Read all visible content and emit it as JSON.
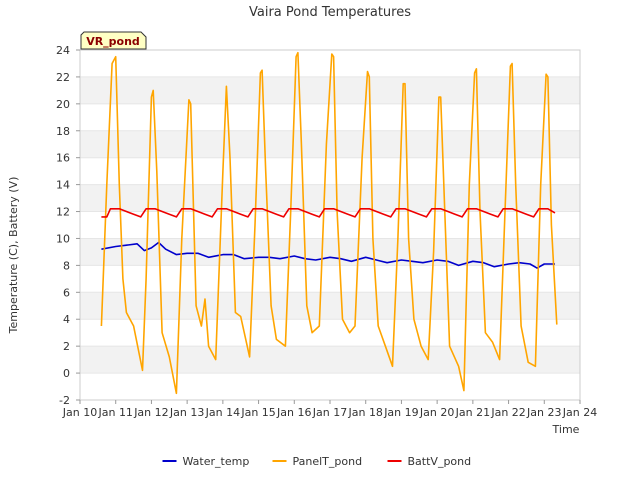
{
  "chart_data": {
    "type": "line",
    "title": "Vaira Pond Temperatures",
    "xlabel": "Time",
    "ylabel": "Temperature (C), Battery (V)",
    "badge": "VR_pond",
    "xlim": [
      10,
      24
    ],
    "ylim": [
      -2,
      24
    ],
    "x_ticks": [
      {
        "value": 10,
        "label": "Jan 10"
      },
      {
        "value": 11,
        "label": "Jan 11"
      },
      {
        "value": 12,
        "label": "Jan 12"
      },
      {
        "value": 13,
        "label": "Jan 13"
      },
      {
        "value": 14,
        "label": "Jan 14"
      },
      {
        "value": 15,
        "label": "Jan 15"
      },
      {
        "value": 16,
        "label": "Jan 16"
      },
      {
        "value": 17,
        "label": "Jan 17"
      },
      {
        "value": 18,
        "label": "Jan 18"
      },
      {
        "value": 19,
        "label": "Jan 19"
      },
      {
        "value": 20,
        "label": "Jan 20"
      },
      {
        "value": 21,
        "label": "Jan 21"
      },
      {
        "value": 22,
        "label": "Jan 22"
      },
      {
        "value": 23,
        "label": "Jan 23"
      },
      {
        "value": 24,
        "label": "Jan 24"
      }
    ],
    "y_ticks": [
      -2,
      0,
      2,
      4,
      6,
      8,
      10,
      12,
      14,
      16,
      18,
      20,
      22,
      24
    ],
    "grid": "horizontal bands",
    "legend_position": "bottom",
    "series": [
      {
        "name": "Water_temp",
        "color": "#0000cc",
        "x": [
          10.6,
          11.0,
          11.3,
          11.6,
          11.8,
          12.0,
          12.2,
          12.4,
          12.7,
          13.0,
          13.3,
          13.6,
          14.0,
          14.3,
          14.6,
          15.0,
          15.3,
          15.6,
          16.0,
          16.3,
          16.6,
          17.0,
          17.3,
          17.6,
          18.0,
          18.3,
          18.6,
          19.0,
          19.3,
          19.6,
          20.0,
          20.3,
          20.6,
          21.0,
          21.3,
          21.6,
          22.0,
          22.3,
          22.6,
          22.8,
          23.0,
          23.3
        ],
        "values": [
          9.2,
          9.4,
          9.5,
          9.6,
          9.1,
          9.3,
          9.7,
          9.2,
          8.8,
          8.9,
          8.9,
          8.6,
          8.8,
          8.8,
          8.5,
          8.6,
          8.6,
          8.5,
          8.7,
          8.5,
          8.4,
          8.6,
          8.5,
          8.3,
          8.6,
          8.4,
          8.2,
          8.4,
          8.3,
          8.2,
          8.4,
          8.3,
          8.0,
          8.3,
          8.2,
          7.9,
          8.1,
          8.2,
          8.1,
          7.8,
          8.1,
          8.1
        ]
      },
      {
        "name": "PanelT_pond",
        "color": "#ffa500",
        "x": [
          10.6,
          10.75,
          10.9,
          11.0,
          11.1,
          11.2,
          11.3,
          11.5,
          11.75,
          11.85,
          12.0,
          12.05,
          12.15,
          12.3,
          12.5,
          12.7,
          12.85,
          13.05,
          13.1,
          13.25,
          13.4,
          13.5,
          13.6,
          13.8,
          14.0,
          14.1,
          14.2,
          14.35,
          14.5,
          14.75,
          14.9,
          15.05,
          15.1,
          15.2,
          15.35,
          15.5,
          15.75,
          15.9,
          16.05,
          16.1,
          16.2,
          16.35,
          16.5,
          16.7,
          16.9,
          17.05,
          17.1,
          17.2,
          17.35,
          17.55,
          17.7,
          17.9,
          18.05,
          18.1,
          18.2,
          18.35,
          18.55,
          18.75,
          18.9,
          19.05,
          19.1,
          19.2,
          19.35,
          19.55,
          19.75,
          19.9,
          20.05,
          20.1,
          20.2,
          20.35,
          20.6,
          20.75,
          20.9,
          21.05,
          21.1,
          21.2,
          21.35,
          21.55,
          21.75,
          21.9,
          22.05,
          22.1,
          22.2,
          22.35,
          22.55,
          22.75,
          22.9,
          23.05,
          23.1,
          23.2,
          23.35
        ],
        "values": [
          3.5,
          14.0,
          23.0,
          23.5,
          14.0,
          7.0,
          4.5,
          3.5,
          0.2,
          7.0,
          20.5,
          21.0,
          15.0,
          3.0,
          1.2,
          -1.5,
          10.0,
          20.3,
          20.0,
          5.0,
          3.5,
          5.5,
          2.0,
          1.0,
          15.0,
          21.3,
          16.0,
          4.5,
          4.2,
          1.2,
          11.0,
          22.3,
          22.5,
          15.0,
          5.0,
          2.5,
          2.0,
          12.0,
          23.5,
          23.8,
          17.0,
          5.0,
          3.0,
          3.5,
          17.0,
          23.7,
          23.5,
          12.0,
          4.0,
          3.0,
          3.5,
          16.0,
          22.4,
          22.0,
          10.0,
          3.5,
          2.0,
          0.5,
          10.0,
          21.5,
          21.5,
          10.0,
          4.0,
          2.0,
          1.0,
          9.0,
          20.5,
          20.5,
          13.0,
          2.0,
          0.5,
          -1.3,
          14.0,
          22.3,
          22.6,
          12.0,
          3.0,
          2.3,
          1.0,
          12.0,
          22.8,
          23.0,
          14.0,
          3.5,
          0.8,
          0.5,
          14.0,
          22.2,
          22.0,
          11.0,
          3.6
        ]
      },
      {
        "name": "BattV_pond",
        "color": "#ee0000",
        "x": [
          10.6,
          10.75,
          10.85,
          11.1,
          11.3,
          11.5,
          11.7,
          11.85,
          12.1,
          12.3,
          12.5,
          12.7,
          12.85,
          13.1,
          13.3,
          13.5,
          13.7,
          13.85,
          14.1,
          14.3,
          14.5,
          14.7,
          14.85,
          15.1,
          15.3,
          15.5,
          15.7,
          15.85,
          16.1,
          16.3,
          16.5,
          16.7,
          16.85,
          17.1,
          17.3,
          17.5,
          17.7,
          17.85,
          18.1,
          18.3,
          18.5,
          18.7,
          18.85,
          19.1,
          19.3,
          19.5,
          19.7,
          19.85,
          20.1,
          20.3,
          20.5,
          20.7,
          20.85,
          21.1,
          21.3,
          21.5,
          21.7,
          21.85,
          22.1,
          22.3,
          22.5,
          22.7,
          22.85,
          23.1,
          23.3
        ],
        "values": [
          11.6,
          11.6,
          12.2,
          12.2,
          12.0,
          11.8,
          11.6,
          12.2,
          12.2,
          12.0,
          11.8,
          11.6,
          12.2,
          12.2,
          12.0,
          11.8,
          11.6,
          12.2,
          12.2,
          12.0,
          11.8,
          11.6,
          12.2,
          12.2,
          12.0,
          11.8,
          11.6,
          12.2,
          12.2,
          12.0,
          11.8,
          11.6,
          12.2,
          12.2,
          12.0,
          11.8,
          11.6,
          12.2,
          12.2,
          12.0,
          11.8,
          11.6,
          12.2,
          12.2,
          12.0,
          11.8,
          11.6,
          12.2,
          12.2,
          12.0,
          11.8,
          11.6,
          12.2,
          12.2,
          12.0,
          11.8,
          11.6,
          12.2,
          12.2,
          12.0,
          11.8,
          11.6,
          12.2,
          12.2,
          11.9
        ]
      }
    ]
  }
}
